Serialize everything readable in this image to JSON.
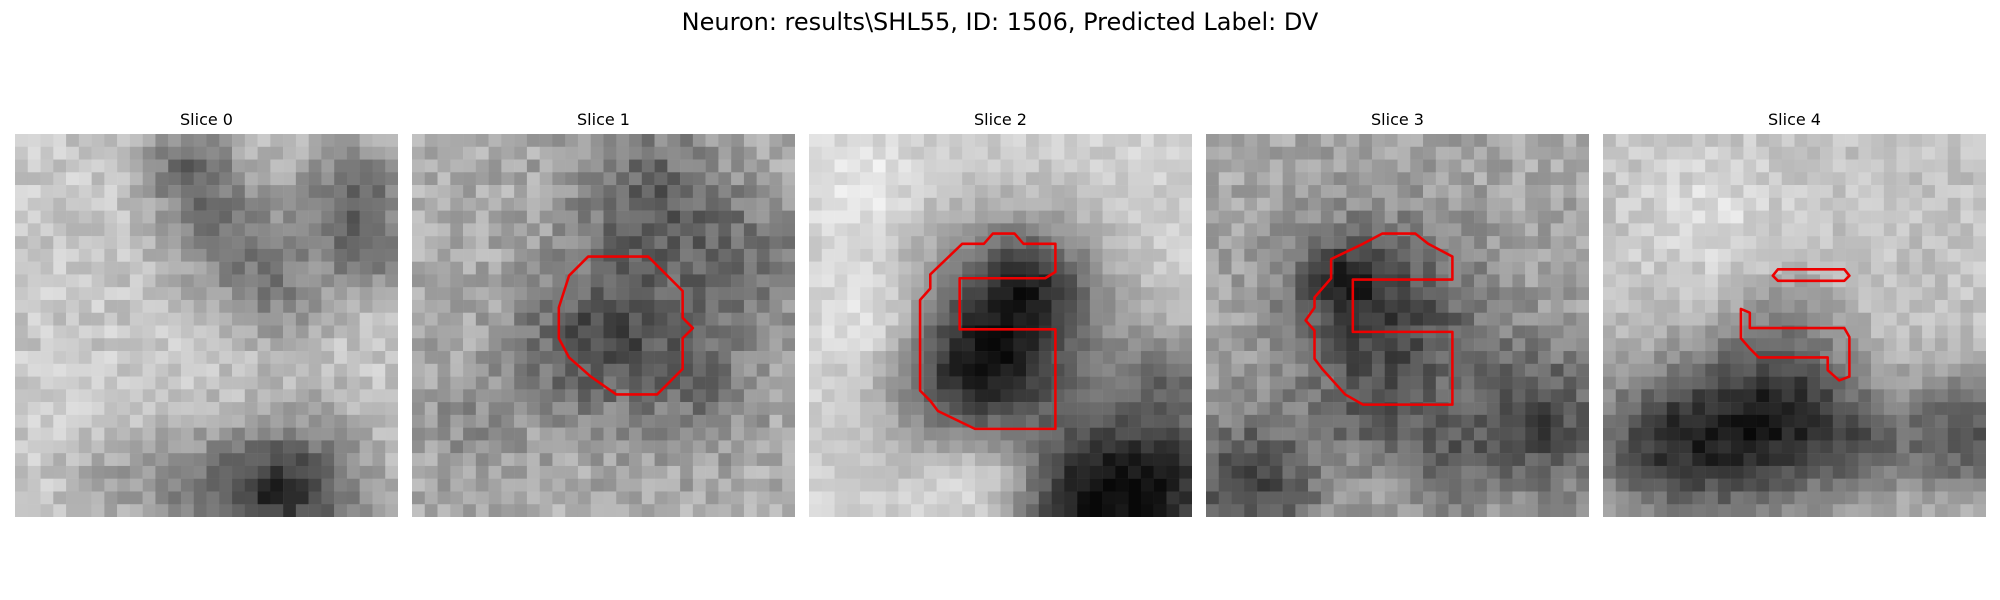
{
  "figure": {
    "title": "Neuron: results\\SHL55, ID: 1506, Predicted Label: DV",
    "contour_color": "#ee0000"
  },
  "slices": [
    {
      "title": "Slice 0"
    },
    {
      "title": "Slice 1"
    },
    {
      "title": "Slice 2"
    },
    {
      "title": "Slice 3"
    },
    {
      "title": "Slice 4"
    }
  ]
}
